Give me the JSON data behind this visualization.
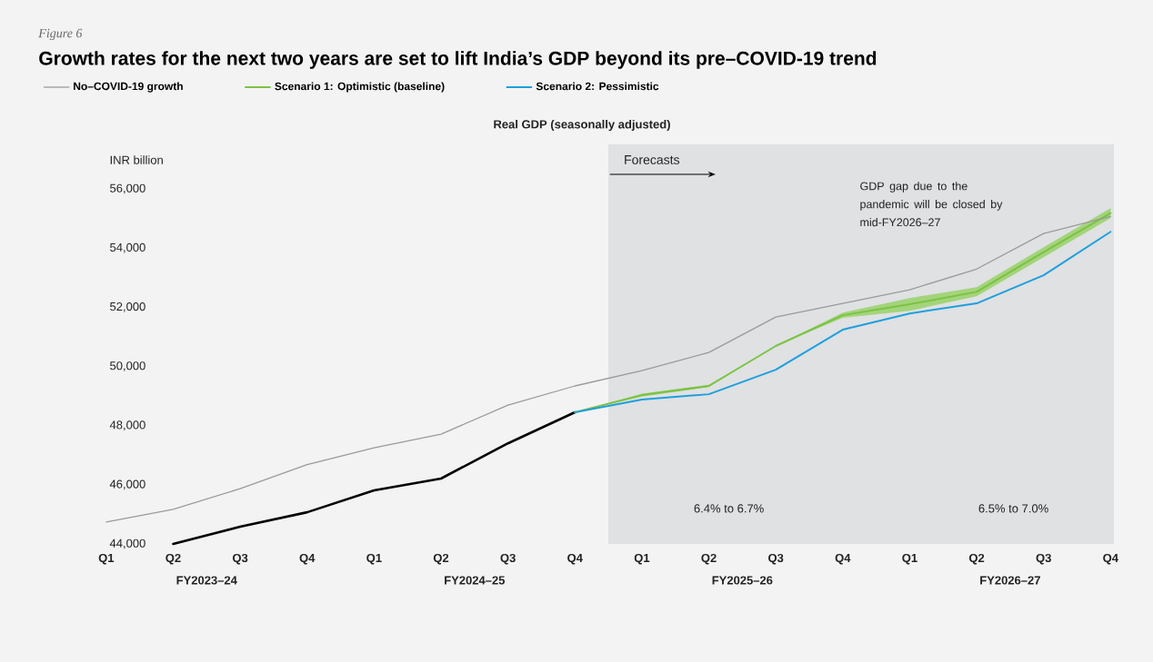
{
  "chart_data": {
    "type": "line",
    "title": "Growth rates for the next two years are set to lift India’s GDP beyond its pre–COVID-19 trend",
    "subtitle": "Real GDP (seasonally adjusted)",
    "ylabel": "INR billion",
    "categories": [
      "Q1",
      "Q2",
      "Q3",
      "Q4",
      "Q1",
      "Q2",
      "Q3",
      "Q4",
      "Q1",
      "Q2",
      "Q3",
      "Q4",
      "Q1",
      "Q2",
      "Q3",
      "Q4"
    ],
    "ylim": [
      44000,
      56000
    ],
    "yticks": [
      {
        "value": 44000,
        "label": "44,000"
      },
      {
        "value": 46000,
        "label": "46,000"
      },
      {
        "value": 48000,
        "label": "48,000"
      },
      {
        "value": 50000,
        "label": "50,000"
      },
      {
        "value": 52000,
        "label": "52,000"
      },
      {
        "value": 54000,
        "label": "54,000"
      },
      {
        "value": 56000,
        "label": "56,000"
      }
    ],
    "series": [
      {
        "name": "No–COVID-19 growth",
        "color": "#9a9a9a",
        "values": [
          44740,
          45170,
          45870,
          46680,
          47250,
          47710,
          48690,
          49340,
          49860,
          50470,
          51670,
          52130,
          52590,
          53290,
          54490,
          55070
        ]
      },
      {
        "color": "#000000",
        "values": [
          null,
          44000,
          44580,
          45070,
          45810,
          46210,
          47400,
          48450,
          null,
          null,
          null,
          null,
          null,
          null,
          null,
          null
        ]
      },
      {
        "name": "Scenario 1: Optimistic (baseline)",
        "color": "#7cc242",
        "values": [
          null,
          null,
          null,
          null,
          null,
          null,
          null,
          48450,
          49030,
          49340,
          50690,
          51730,
          52100,
          52520,
          53860,
          55180
        ],
        "lower": [
          null,
          null,
          null,
          null,
          null,
          null,
          null,
          48450,
          48980,
          49300,
          50690,
          51640,
          51880,
          52370,
          53690,
          55010
        ],
        "upper": [
          null,
          null,
          null,
          null,
          null,
          null,
          null,
          48450,
          49080,
          49380,
          50690,
          51820,
          52310,
          52680,
          54030,
          55350
        ]
      },
      {
        "name": "Scenario 2: Pessimistic",
        "color": "#1e9fdc",
        "values": [
          null,
          null,
          null,
          null,
          null,
          null,
          null,
          48450,
          48880,
          49060,
          49890,
          51240,
          51790,
          52130,
          53080,
          54550
        ]
      }
    ],
    "annotations": [
      "Figure 6",
      "FY2023–24",
      "FY2024–25",
      "FY2025–26",
      "FY2026–27",
      "GDP gap due to the pandemic will be closed by mid-FY2026–27",
      "6.4% to 6.7%",
      "6.5% to 7.0%",
      "Forecasts"
    ],
    "legend": "top left",
    "grid": false,
    "marker": "none",
    "line_style": "solid"
  }
}
